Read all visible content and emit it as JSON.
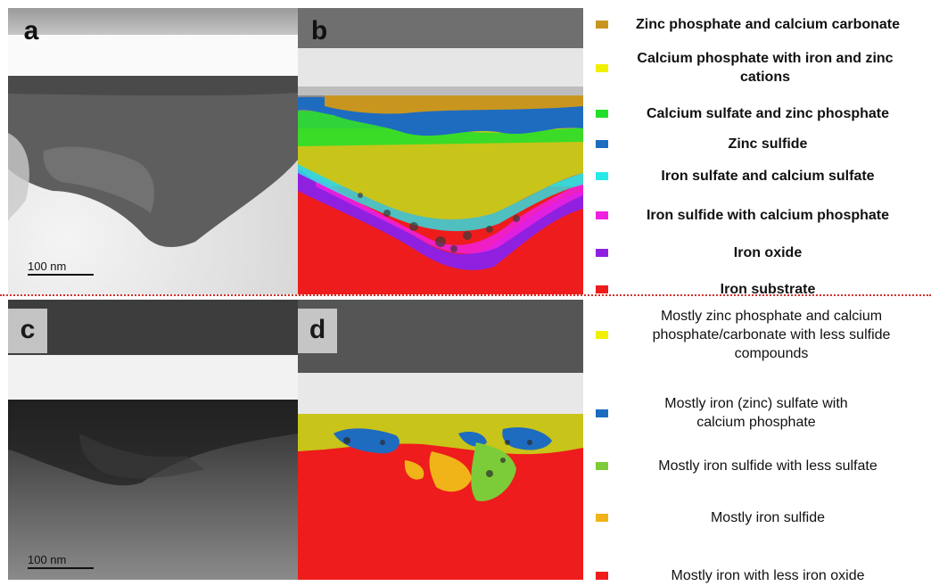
{
  "panels": {
    "a": {
      "letter": "a",
      "scale": "100 nm"
    },
    "b": {
      "letter": "b"
    },
    "c": {
      "letter": "c",
      "scale": "100 nm"
    },
    "d": {
      "letter": "d"
    }
  },
  "legend_top": [
    {
      "label": "Zinc phosphate and calcium carbonate",
      "color": "#c8961e"
    },
    {
      "label": "Calcium phosphate with iron and zinc cations",
      "color": "#f0f000"
    },
    {
      "label": "Calcium sulfate and zinc phosphate",
      "color": "#22e02a"
    },
    {
      "label": "Zinc sulfide",
      "color": "#1e6cc0"
    },
    {
      "label": "Iron sulfate and calcium sulfate",
      "color": "#28e8e8"
    },
    {
      "label": "Iron sulfide with calcium phosphate",
      "color": "#f020e0"
    },
    {
      "label": "Iron oxide",
      "color": "#9020e0"
    },
    {
      "label": "Iron substrate",
      "color": "#ee1c1c"
    }
  ],
  "legend_bottom": [
    {
      "label": "Mostly zinc phosphate and calcium phosphate/carbonate  with less sulfide compounds",
      "color": "#f0f000"
    },
    {
      "label": "Mostly iron (zinc) sulfate with calcium  phosphate",
      "color": "#1e6cc0"
    },
    {
      "label": "Mostly iron sulfide with less sulfate",
      "color": "#7ccc3a"
    },
    {
      "label": "Mostly iron sulfide",
      "color": "#f0b418"
    },
    {
      "label": "Mostly iron with less iron oxide",
      "color": "#ee1c1c"
    }
  ]
}
